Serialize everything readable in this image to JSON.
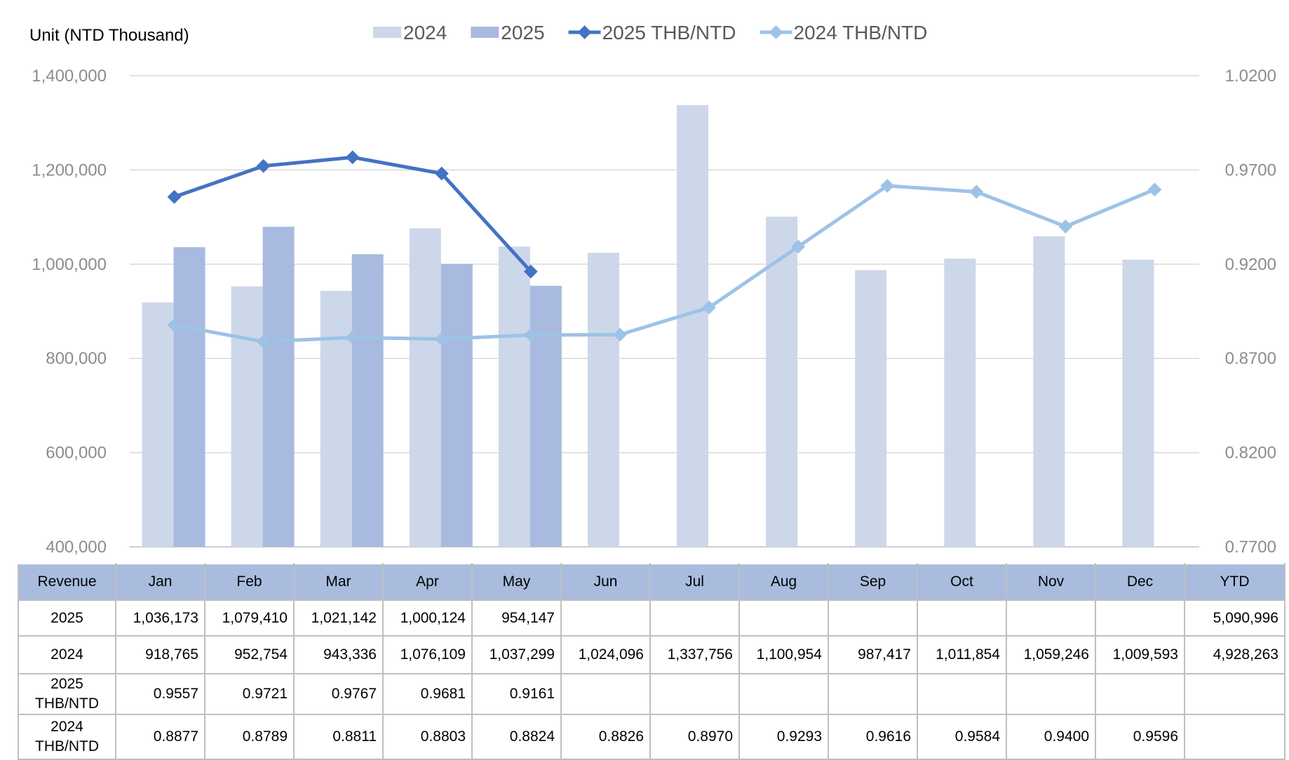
{
  "chart_data": {
    "type": "bar",
    "unit_label": "Unit (NTD  Thousand)",
    "categories": [
      "Jan",
      "Feb",
      "Mar",
      "Apr",
      "May",
      "Jun",
      "Jul",
      "Aug",
      "Sep",
      "Oct",
      "Nov",
      "Dec"
    ],
    "bar_series": [
      {
        "name": "2024",
        "color": "#cdd7ea",
        "values": [
          918765,
          952754,
          943336,
          1076109,
          1037299,
          1024096,
          1337756,
          1100954,
          987417,
          1011854,
          1059246,
          1009593
        ]
      },
      {
        "name": "2025",
        "color": "#a8badf",
        "values": [
          1036173,
          1079410,
          1021142,
          1000124,
          954147,
          null,
          null,
          null,
          null,
          null,
          null,
          null
        ]
      }
    ],
    "line_series": [
      {
        "name": "2025 THB/NTD",
        "color": "#4472c4",
        "values": [
          0.9557,
          0.9721,
          0.9767,
          0.9681,
          0.9161,
          null,
          null,
          null,
          null,
          null,
          null,
          null
        ]
      },
      {
        "name": "2024 THB/NTD",
        "color": "#9dc3e6",
        "values": [
          0.8877,
          0.8789,
          0.8811,
          0.8803,
          0.8824,
          0.8826,
          0.897,
          0.9293,
          0.9616,
          0.9584,
          0.94,
          0.9596
        ]
      }
    ],
    "left_axis": {
      "ylim": [
        400000,
        1400000
      ],
      "ticks": [
        "1,400,000",
        "1,200,000",
        "1,000,000",
        "800,000",
        "600,000",
        "400,000"
      ]
    },
    "right_axis": {
      "ylim": [
        0.77,
        1.02
      ],
      "ticks": [
        "1.0200",
        "0.9700",
        "0.9200",
        "0.8700",
        "0.8200",
        "0.7700"
      ]
    },
    "grid": true,
    "legend_position": "top"
  },
  "table": {
    "header": [
      "Revenue",
      "Jan",
      "Feb",
      "Mar",
      "Apr",
      "May",
      "Jun",
      "Jul",
      "Aug",
      "Sep",
      "Oct",
      "Nov",
      "Dec",
      "YTD"
    ],
    "rows": [
      [
        "2025",
        "1,036,173",
        "1,079,410",
        "1,021,142",
        "1,000,124",
        "954,147",
        "",
        "",
        "",
        "",
        "",
        "",
        "",
        "5,090,996"
      ],
      [
        "2024",
        "918,765",
        "952,754",
        "943,336",
        "1,076,109",
        "1,037,299",
        "1,024,096",
        "1,337,756",
        "1,100,954",
        "987,417",
        "1,011,854",
        "1,059,246",
        "1,009,593",
        "4,928,263"
      ],
      [
        "2025 THB/NTD",
        "0.9557",
        "0.9721",
        "0.9767",
        "0.9681",
        "0.9161",
        "",
        "",
        "",
        "",
        "",
        "",
        "",
        ""
      ],
      [
        "2024 THB/NTD",
        "0.8877",
        "0.8789",
        "0.8811",
        "0.8803",
        "0.8824",
        "0.8826",
        "0.8970",
        "0.9293",
        "0.9616",
        "0.9584",
        "0.9400",
        "0.9596",
        ""
      ]
    ]
  }
}
